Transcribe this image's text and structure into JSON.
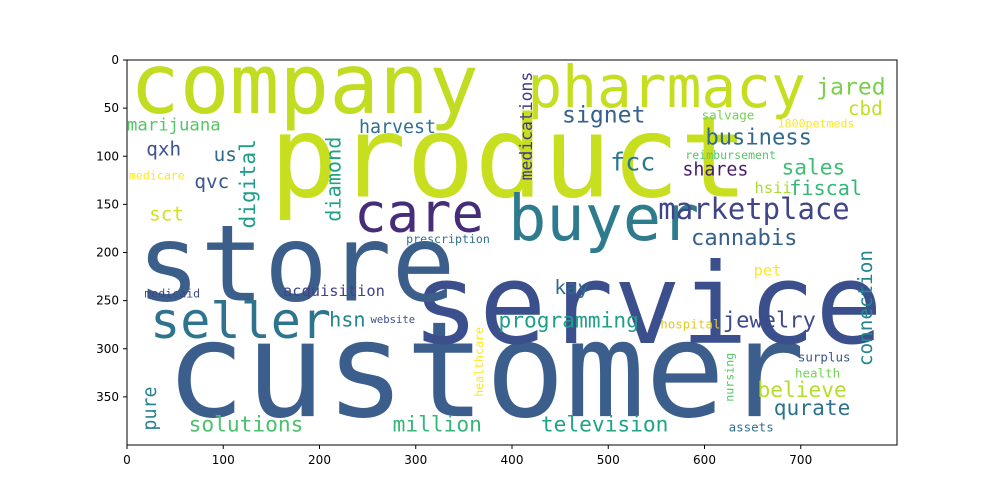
{
  "chart_data": {
    "type": "wordcloud",
    "title": "",
    "xlabel": "",
    "ylabel": "",
    "xlim": [
      0,
      800
    ],
    "ylim": [
      400,
      0
    ],
    "grid": false,
    "x_ticks": [
      0,
      100,
      200,
      300,
      400,
      500,
      600,
      700
    ],
    "y_ticks": [
      0,
      50,
      100,
      150,
      200,
      250,
      300,
      350
    ],
    "words": [
      {
        "text": "customer",
        "x": 40,
        "y": 370,
        "size": 138,
        "color": "#3b5e8c",
        "rotate": false
      },
      {
        "text": "service",
        "x": 296,
        "y": 294,
        "size": 116,
        "color": "#3b4f8d",
        "rotate": false
      },
      {
        "text": "product",
        "x": 148,
        "y": 142,
        "size": 118,
        "color": "#c8df1f",
        "rotate": false
      },
      {
        "text": "store",
        "x": 10,
        "y": 250,
        "size": 110,
        "color": "#3b5f8a",
        "rotate": false
      },
      {
        "text": "company",
        "x": 3,
        "y": 55,
        "size": 86,
        "color": "#c2dc22",
        "rotate": false
      },
      {
        "text": "pharmacy",
        "x": 416,
        "y": 49,
        "size": 60,
        "color": "#c6de20",
        "rotate": false
      },
      {
        "text": "buyer",
        "x": 396,
        "y": 187,
        "size": 66,
        "color": "#2f7b8e",
        "rotate": false
      },
      {
        "text": "care",
        "x": 236,
        "y": 178,
        "size": 56,
        "color": "#472c7a",
        "rotate": false
      },
      {
        "text": "seller",
        "x": 24,
        "y": 289,
        "size": 52,
        "color": "#2f748e",
        "rotate": false
      },
      {
        "text": "marketplace",
        "x": 552,
        "y": 165,
        "size": 30,
        "color": "#404488",
        "rotate": false
      },
      {
        "text": "cannabis",
        "x": 586,
        "y": 192,
        "size": 23,
        "color": "#35608d",
        "rotate": false
      },
      {
        "text": "signet",
        "x": 452,
        "y": 65,
        "size": 24,
        "color": "#34618d",
        "rotate": false
      },
      {
        "text": "business",
        "x": 601,
        "y": 88,
        "size": 23,
        "color": "#30698e",
        "rotate": false
      },
      {
        "text": "jared",
        "x": 716,
        "y": 36,
        "size": 24,
        "color": "#7ccf4b",
        "rotate": false
      },
      {
        "text": "cbd",
        "x": 749,
        "y": 57,
        "size": 20,
        "color": "#c2df23",
        "rotate": false
      },
      {
        "text": "fcc",
        "x": 502,
        "y": 115,
        "size": 26,
        "color": "#2a788e",
        "rotate": false
      },
      {
        "text": "sales",
        "x": 680,
        "y": 119,
        "size": 22,
        "color": "#3fbc73",
        "rotate": false
      },
      {
        "text": "shares",
        "x": 577,
        "y": 120,
        "size": 19,
        "color": "#481a6c",
        "rotate": false
      },
      {
        "text": "fiscal",
        "x": 688,
        "y": 140,
        "size": 21,
        "color": "#35b779",
        "rotate": false
      },
      {
        "text": "hsii",
        "x": 652,
        "y": 138,
        "size": 16,
        "color": "#a8db34",
        "rotate": false
      },
      {
        "text": "marijuana",
        "x": 0,
        "y": 73,
        "size": 18,
        "color": "#55c667",
        "rotate": false
      },
      {
        "text": "harvest",
        "x": 241,
        "y": 76,
        "size": 19,
        "color": "#2d708e",
        "rotate": false
      },
      {
        "text": "qxh",
        "x": 20,
        "y": 99,
        "size": 20,
        "color": "#3b528b",
        "rotate": false
      },
      {
        "text": "us",
        "x": 90,
        "y": 105,
        "size": 20,
        "color": "#31688e",
        "rotate": false
      },
      {
        "text": "qvc",
        "x": 70,
        "y": 133,
        "size": 20,
        "color": "#39568c",
        "rotate": false
      },
      {
        "text": "sct",
        "x": 23,
        "y": 167,
        "size": 20,
        "color": "#d2e21b",
        "rotate": false
      },
      {
        "text": "medicare",
        "x": 2,
        "y": 124,
        "size": 12,
        "color": "#fde725",
        "rotate": false
      },
      {
        "text": "prescription",
        "x": 290,
        "y": 190,
        "size": 12,
        "color": "#2d708e",
        "rotate": false
      },
      {
        "text": "acquisition",
        "x": 162,
        "y": 245,
        "size": 16,
        "color": "#414487",
        "rotate": false
      },
      {
        "text": "medicaid",
        "x": 18,
        "y": 247,
        "size": 12,
        "color": "#3e4989",
        "rotate": false
      },
      {
        "text": "hsn",
        "x": 210,
        "y": 277,
        "size": 21,
        "color": "#25838e",
        "rotate": false
      },
      {
        "text": "kay",
        "x": 444,
        "y": 243,
        "size": 20,
        "color": "#31688e",
        "rotate": false
      },
      {
        "text": "website",
        "x": 253,
        "y": 273,
        "size": 11,
        "color": "#3b528b",
        "rotate": false
      },
      {
        "text": "programming",
        "x": 386,
        "y": 278,
        "size": 22,
        "color": "#1f9e89",
        "rotate": false
      },
      {
        "text": "jewelry",
        "x": 619,
        "y": 278,
        "size": 23,
        "color": "#3e4a89",
        "rotate": false
      },
      {
        "text": "pet",
        "x": 651,
        "y": 224,
        "size": 16,
        "color": "#fde725",
        "rotate": false
      },
      {
        "text": "hospital",
        "x": 554,
        "y": 279,
        "size": 13,
        "color": "#ddc92c",
        "rotate": false
      },
      {
        "text": "surplus",
        "x": 697,
        "y": 313,
        "size": 13,
        "color": "#39568c",
        "rotate": false
      },
      {
        "text": "health",
        "x": 694,
        "y": 330,
        "size": 13,
        "color": "#73d056",
        "rotate": false
      },
      {
        "text": "believe",
        "x": 655,
        "y": 350,
        "size": 22,
        "color": "#b5de2b",
        "rotate": false
      },
      {
        "text": "qurate",
        "x": 672,
        "y": 369,
        "size": 22,
        "color": "#2c728e",
        "rotate": false
      },
      {
        "text": "solutions",
        "x": 64,
        "y": 386,
        "size": 22,
        "color": "#4ac16d",
        "rotate": false
      },
      {
        "text": "million",
        "x": 276,
        "y": 386,
        "size": 22,
        "color": "#35b779",
        "rotate": false
      },
      {
        "text": "television",
        "x": 430,
        "y": 386,
        "size": 22,
        "color": "#20a486",
        "rotate": false
      },
      {
        "text": "assets",
        "x": 625,
        "y": 386,
        "size": 13,
        "color": "#2c728e",
        "rotate": false
      },
      {
        "text": "salvage",
        "x": 597,
        "y": 62,
        "size": 13,
        "color": "#73d056",
        "rotate": false
      },
      {
        "text": "1800petmeds",
        "x": 676,
        "y": 70,
        "size": 12,
        "color": "#fde725",
        "rotate": false
      },
      {
        "text": "reimbursement",
        "x": 580,
        "y": 103,
        "size": 12,
        "color": "#56c667",
        "rotate": false
      },
      {
        "text": "medications",
        "x": 421,
        "y": 125,
        "size": 17,
        "color": "#443983",
        "rotate": true
      },
      {
        "text": "digital",
        "x": 133,
        "y": 175,
        "size": 22,
        "color": "#1f9e89",
        "rotate": true
      },
      {
        "text": "diamond",
        "x": 222,
        "y": 168,
        "size": 21,
        "color": "#20a386",
        "rotate": true
      },
      {
        "text": "connection",
        "x": 774,
        "y": 318,
        "size": 20,
        "color": "#24878e",
        "rotate": true
      },
      {
        "text": "pure",
        "x": 30,
        "y": 385,
        "size": 19,
        "color": "#26828e",
        "rotate": true
      },
      {
        "text": "healthcare",
        "x": 370,
        "y": 350,
        "size": 12,
        "color": "#fde725",
        "rotate": true
      },
      {
        "text": "nursing",
        "x": 630,
        "y": 355,
        "size": 12,
        "color": "#56c667",
        "rotate": true
      }
    ]
  }
}
